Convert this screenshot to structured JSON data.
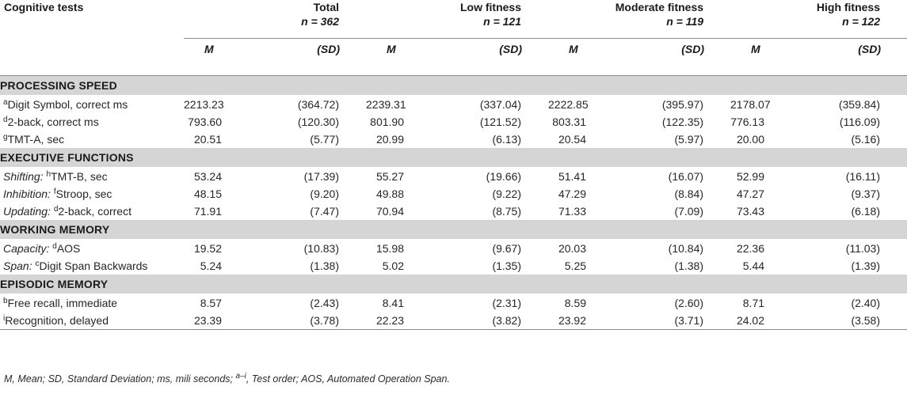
{
  "table": {
    "corner_label": "Cognitive tests",
    "groups": [
      {
        "name": "Total",
        "n_label": "n = 362"
      },
      {
        "name": "Low fitness",
        "n_label": "n = 121"
      },
      {
        "name": "Moderate fitness",
        "n_label": "n = 119"
      },
      {
        "name": "High fitness",
        "n_label": "n = 122"
      }
    ],
    "subheaders": {
      "m": "M",
      "sd": "(SD)"
    },
    "sections": [
      {
        "title": "PROCESSING SPEED",
        "rows": [
          {
            "prefix": "",
            "sup": "a",
            "label": "Digit Symbol, correct ms",
            "values": [
              "2213.23",
              "(364.72)",
              "2239.31",
              "(337.04)",
              "2222.85",
              "(395.97)",
              "2178.07",
              "(359.84)"
            ]
          },
          {
            "prefix": "",
            "sup": "d",
            "label": "2-back, correct ms",
            "values": [
              "793.60",
              "(120.30)",
              "801.90",
              "(121.52)",
              "803.31",
              "(122.35)",
              "776.13",
              "(116.09)"
            ]
          },
          {
            "prefix": "",
            "sup": "g",
            "label": "TMT-A, sec",
            "values": [
              "20.51",
              "(5.77)",
              "20.99",
              "(6.13)",
              "20.54",
              "(5.97)",
              "20.00",
              "(5.16)"
            ]
          }
        ]
      },
      {
        "title": "EXECUTIVE FUNCTIONS",
        "rows": [
          {
            "prefix": "Shifting: ",
            "sup": "h",
            "label": "TMT-B, sec",
            "values": [
              "53.24",
              "(17.39)",
              "55.27",
              "(19.66)",
              "51.41",
              "(16.07)",
              "52.99",
              "(16.11)"
            ]
          },
          {
            "prefix": "Inhibition: ",
            "sup": "f",
            "label": "Stroop, sec",
            "values": [
              "48.15",
              "(9.20)",
              "49.88",
              "(9.22)",
              "47.29",
              "(8.84)",
              "47.27",
              "(9.37)"
            ]
          },
          {
            "prefix": "Updating: ",
            "sup": "d",
            "label": "2-back, correct",
            "values": [
              "71.91",
              "(7.47)",
              "70.94",
              "(8.75)",
              "71.33",
              "(7.09)",
              "73.43",
              "(6.18)"
            ]
          }
        ]
      },
      {
        "title": "WORKING MEMORY",
        "rows": [
          {
            "prefix": "Capacity: ",
            "sup": "d",
            "label": "AOS",
            "values": [
              "19.52",
              "(10.83)",
              "15.98",
              "(9.67)",
              "20.03",
              "(10.84)",
              "22.36",
              "(11.03)"
            ]
          },
          {
            "prefix": "Span: ",
            "sup": "c",
            "label": "Digit Span Backwards",
            "values": [
              "5.24",
              "(1.38)",
              "5.02",
              "(1.35)",
              "5.25",
              "(1.38)",
              "5.44",
              "(1.39)"
            ]
          }
        ]
      },
      {
        "title": "EPISODIC MEMORY",
        "rows": [
          {
            "prefix": "",
            "sup": "b",
            "label": "Free recall, immediate",
            "values": [
              "8.57",
              "(2.43)",
              "8.41",
              "(2.31)",
              "8.59",
              "(2.60)",
              "8.71",
              "(2.40)"
            ]
          },
          {
            "prefix": "",
            "sup": "i",
            "label": "Recognition, delayed",
            "values": [
              "23.39",
              "(3.78)",
              "22.23",
              "(3.82)",
              "23.92",
              "(3.71)",
              "24.02",
              "(3.58)"
            ]
          }
        ]
      }
    ]
  },
  "footnote": "M, Mean; SD, Standard Deviation; ms, mili seconds; ",
  "footnote_sup": "a–i",
  "footnote_rest": ", Test order; AOS, Automated Operation Span."
}
